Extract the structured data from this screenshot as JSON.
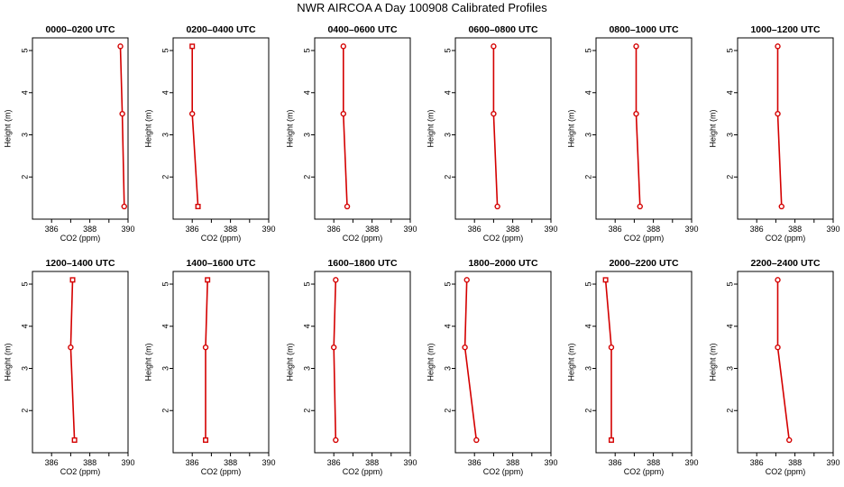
{
  "title": "NWR AIRCOA A  Day 100908  Calibrated Profiles",
  "colors": {
    "series": "#d40000",
    "axis": "#000000",
    "background": "#ffffff"
  },
  "chart_data": {
    "type": "line",
    "xlabel": "CO2 (ppm)",
    "ylabel": "Height (m)",
    "xlim": [
      385,
      390
    ],
    "ylim": [
      1.0,
      5.3
    ],
    "xticks": [
      386,
      388,
      390
    ],
    "yticks": [
      2,
      3,
      4,
      5
    ],
    "heights": [
      1.3,
      3.5,
      5.1
    ],
    "panels": [
      {
        "title": "0000–0200 UTC",
        "co2": [
          389.8,
          389.7,
          389.6
        ],
        "marker": "circle"
      },
      {
        "title": "0200–0400 UTC",
        "co2": [
          386.3,
          386.0,
          386.0
        ],
        "marker": "mixed"
      },
      {
        "title": "0400–0600 UTC",
        "co2": [
          386.7,
          386.5,
          386.5
        ],
        "marker": "circle"
      },
      {
        "title": "0600–0800 UTC",
        "co2": [
          387.2,
          387.0,
          387.0
        ],
        "marker": "circle"
      },
      {
        "title": "0800–1000 UTC",
        "co2": [
          387.3,
          387.1,
          387.1
        ],
        "marker": "circle"
      },
      {
        "title": "1000–1200 UTC",
        "co2": [
          387.3,
          387.1,
          387.1
        ],
        "marker": "circle"
      },
      {
        "title": "1200–1400 UTC",
        "co2": [
          387.2,
          387.0,
          387.1
        ],
        "marker": "mixed"
      },
      {
        "title": "1400–1600 UTC",
        "co2": [
          386.7,
          386.7,
          386.8
        ],
        "marker": "mixed"
      },
      {
        "title": "1600–1800 UTC",
        "co2": [
          386.1,
          386.0,
          386.1
        ],
        "marker": "circle"
      },
      {
        "title": "1800–2000 UTC",
        "co2": [
          386.1,
          385.5,
          385.6
        ],
        "marker": "circle"
      },
      {
        "title": "2000–2200 UTC",
        "co2": [
          385.8,
          385.8,
          385.5
        ],
        "marker": "mixed"
      },
      {
        "title": "2200–2400 UTC",
        "co2": [
          387.7,
          387.1,
          387.1
        ],
        "marker": "circle"
      }
    ]
  }
}
